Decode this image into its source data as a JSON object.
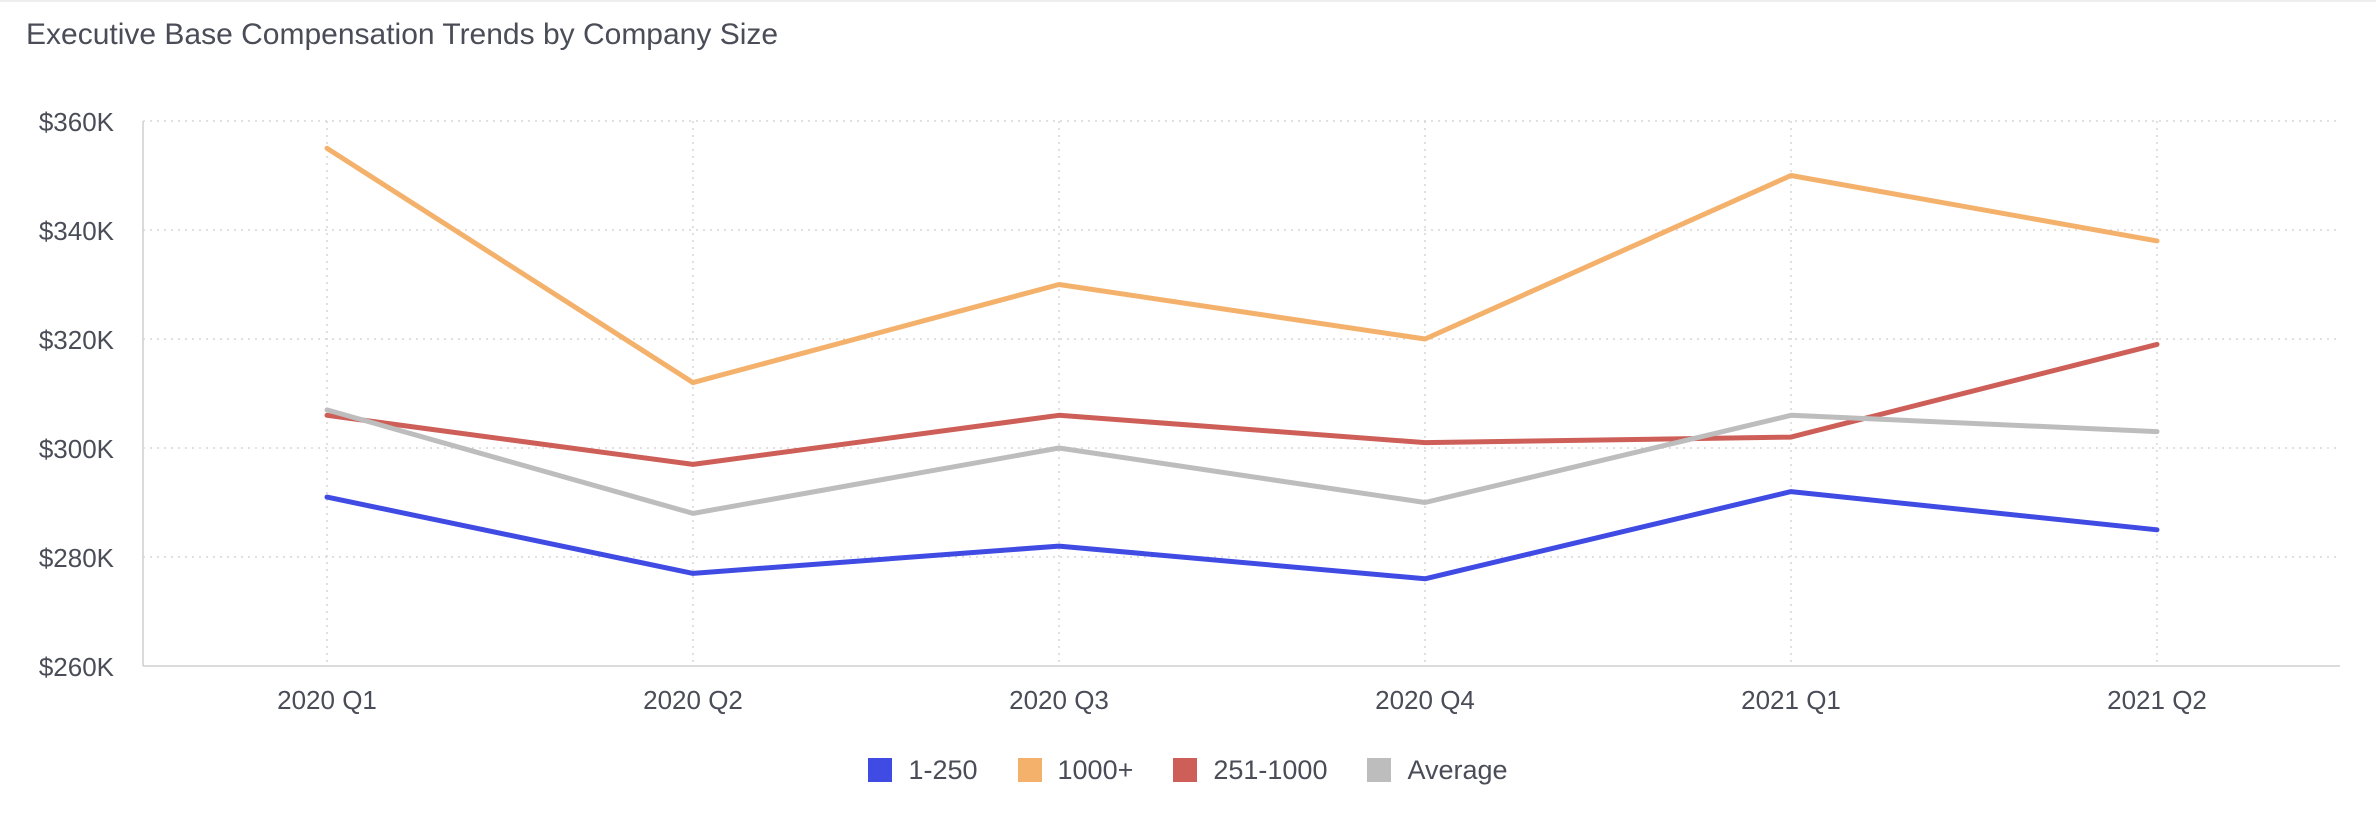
{
  "chart_data": {
    "type": "line",
    "title": "Executive Base Compensation Trends by Company Size",
    "xlabel": "",
    "ylabel": "",
    "categories": [
      "2020 Q1",
      "2020 Q2",
      "2020 Q3",
      "2020 Q4",
      "2021 Q1",
      "2021 Q2"
    ],
    "ylim": [
      260000,
      360000
    ],
    "yticks": [
      260000,
      280000,
      300000,
      320000,
      340000,
      360000
    ],
    "ytick_labels": [
      "$260K",
      "$280K",
      "$300K",
      "$320K",
      "$340K",
      "$360K"
    ],
    "grid": true,
    "legend_position": "bottom-center",
    "series": [
      {
        "name": "1-250",
        "color": "#3f4be3",
        "values": [
          291000,
          277000,
          282000,
          276000,
          292000,
          285000
        ]
      },
      {
        "name": "1000+",
        "color": "#f4b16c",
        "values": [
          355000,
          312000,
          330000,
          320000,
          350000,
          338000
        ]
      },
      {
        "name": "251-1000",
        "color": "#cd5f58",
        "values": [
          306000,
          297000,
          306000,
          301000,
          302000,
          319000
        ]
      },
      {
        "name": "Average",
        "color": "#bdbdbd",
        "values": [
          307000,
          288000,
          300000,
          290000,
          306000,
          303000
        ]
      }
    ]
  }
}
